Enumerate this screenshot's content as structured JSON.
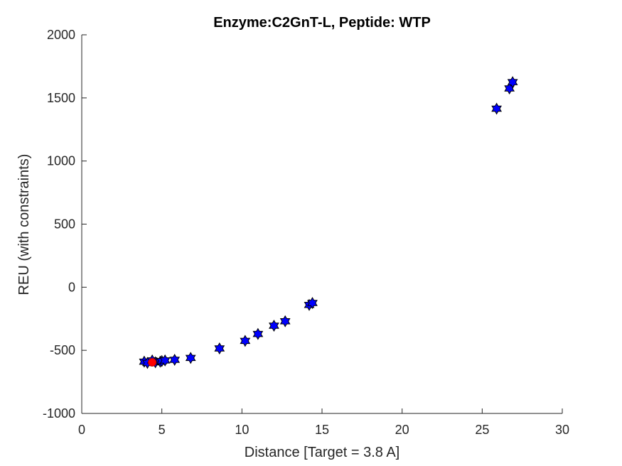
{
  "chart_data": {
    "type": "scatter",
    "title": "Enzyme:C2GnT-L, Peptide: WTP",
    "xlabel": "Distance [Target = 3.8 A]",
    "ylabel": "REU (with constraints)",
    "xlim": [
      0,
      30
    ],
    "ylim": [
      -1000,
      2000
    ],
    "xticks": [
      0,
      5,
      10,
      15,
      20,
      25,
      30
    ],
    "yticks": [
      -1000,
      -500,
      0,
      500,
      1000,
      1500,
      2000
    ],
    "xtick_labels": [
      "0",
      "5",
      "10",
      "15",
      "20",
      "25",
      "30"
    ],
    "ytick_labels": [
      "-1000",
      "-500",
      "0",
      "500",
      "1000",
      "1500",
      "2000"
    ],
    "grid": false,
    "series": [
      {
        "marker": "hexagram",
        "color": "#0000ff",
        "x": [
          3.9,
          4.1,
          4.4,
          4.6,
          4.9,
          5.0,
          5.2,
          5.8,
          6.8,
          8.6,
          10.2,
          11.0,
          12.0,
          12.7,
          14.2,
          14.4,
          25.9,
          26.7,
          26.9
        ],
        "y": [
          -590,
          -600,
          -580,
          -595,
          -590,
          -585,
          -580,
          -575,
          -560,
          -485,
          -425,
          -370,
          -305,
          -270,
          -140,
          -125,
          1415,
          1575,
          1625
        ]
      },
      {
        "marker": "circle",
        "color": "#ff0000",
        "x": [
          4.4
        ],
        "y": [
          -595
        ]
      }
    ]
  }
}
